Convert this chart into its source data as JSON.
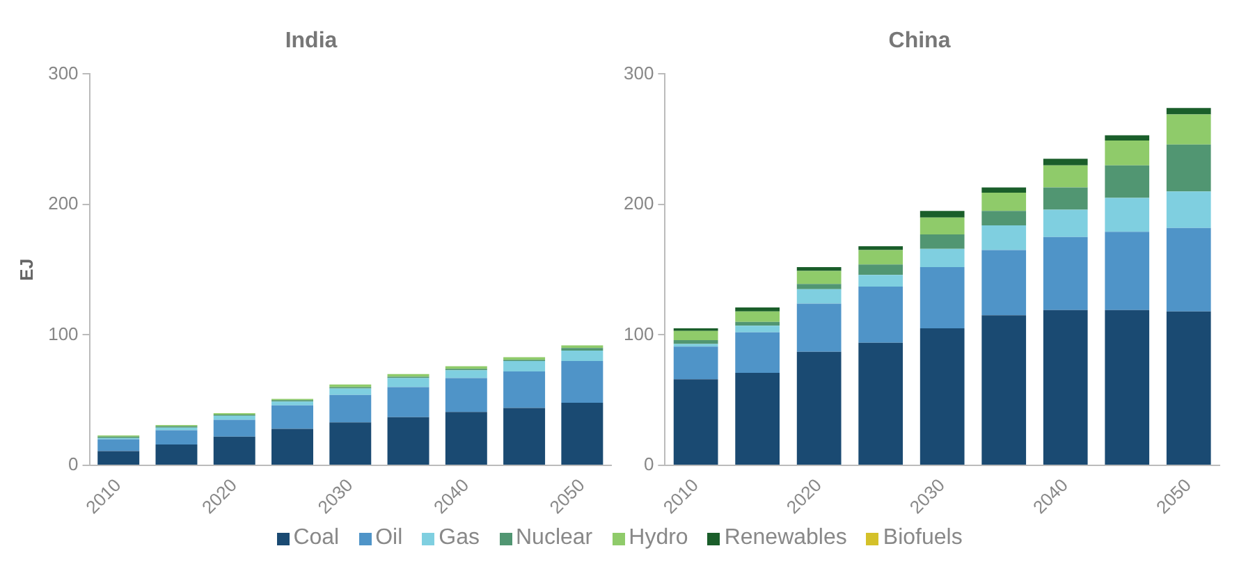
{
  "chart_data": [
    {
      "type": "bar",
      "title": "India",
      "ylabel": "EJ",
      "stacked": true,
      "legend": "bottom",
      "grid": false,
      "categories": [
        "2010",
        null,
        "2020",
        null,
        "2030",
        null,
        "2040",
        null,
        "2050"
      ],
      "ylim": [
        0,
        300
      ],
      "yticks": [
        0,
        100,
        200,
        300
      ],
      "series": [
        {
          "name": "Coal",
          "color": "#1a4a72",
          "values": [
            11,
            16,
            22,
            28,
            33,
            37,
            41,
            44,
            48
          ]
        },
        {
          "name": "Oil",
          "color": "#4f94c8",
          "values": [
            9,
            11,
            13,
            18,
            21,
            23,
            26,
            28,
            32
          ]
        },
        {
          "name": "Gas",
          "color": "#7fcfe0",
          "values": [
            1,
            2,
            3,
            3,
            5,
            7,
            6,
            8,
            8
          ]
        },
        {
          "name": "Nuclear",
          "color": "#519672",
          "values": [
            1,
            1,
            1,
            1,
            1,
            1,
            1,
            1,
            2
          ]
        },
        {
          "name": "Hydro",
          "color": "#8fcb6a",
          "values": [
            1,
            1,
            1,
            1,
            2,
            2,
            2,
            2,
            2
          ]
        },
        {
          "name": "Renewables",
          "color": "#1a5e2a",
          "values": [
            0,
            0,
            0,
            0,
            0,
            0,
            0,
            0,
            0
          ]
        },
        {
          "name": "Biofuels",
          "color": "#d4c12a",
          "values": [
            0,
            0,
            0,
            0,
            0,
            0,
            0,
            0,
            0
          ]
        }
      ]
    },
    {
      "type": "bar",
      "title": "China",
      "stacked": true,
      "grid": false,
      "categories": [
        "2010",
        null,
        "2020",
        null,
        "2030",
        null,
        "2040",
        null,
        "2050"
      ],
      "ylim": [
        0,
        300
      ],
      "yticks": [
        0,
        100,
        200,
        300
      ],
      "series": [
        {
          "color": "#1a4a72",
          "values": [
            66,
            71,
            87,
            94,
            105,
            115,
            119,
            119,
            118
          ]
        },
        {
          "color": "#4f94c8",
          "values": [
            25,
            31,
            37,
            43,
            47,
            50,
            56,
            60,
            64
          ]
        },
        {
          "color": "#7fcfe0",
          "values": [
            2,
            5,
            11,
            9,
            14,
            19,
            21,
            26,
            28
          ]
        },
        {
          "color": "#519672",
          "values": [
            3,
            3,
            4,
            8,
            11,
            11,
            17,
            25,
            36
          ]
        },
        {
          "color": "#8fcb6a",
          "values": [
            7,
            8,
            10,
            11,
            13,
            14,
            17,
            19,
            23
          ]
        },
        {
          "color": "#1a5e2a",
          "values": [
            2,
            3,
            3,
            3,
            5,
            4,
            5,
            4,
            5
          ]
        },
        {
          "color": "#d4c12a",
          "values": [
            0,
            0,
            0,
            0,
            0,
            0,
            0,
            0,
            0
          ]
        }
      ]
    }
  ]
}
